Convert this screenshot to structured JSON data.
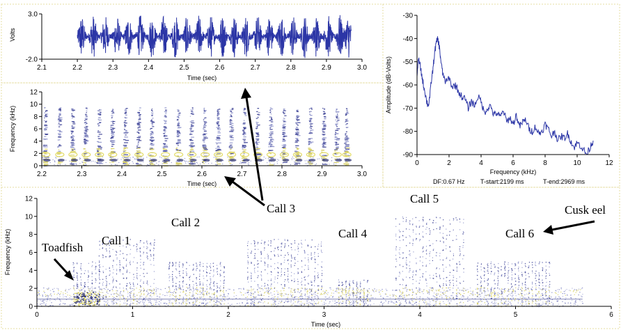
{
  "waveform": {
    "ylabel": "Volts",
    "xlabel": "Time (sec)",
    "y_ticks": [
      "3.0",
      "-2.0"
    ],
    "x_ticks": [
      "2.1",
      "2.2",
      "2.3",
      "2.4",
      "2.5",
      "2.6",
      "2.7",
      "2.8",
      "2.9",
      "3.0"
    ],
    "color": "#2b35a6"
  },
  "spectrogram_small": {
    "ylabel": "Frequency (kHz)",
    "xlabel": "Time (sec)",
    "y_ticks": [
      "0",
      "2",
      "4",
      "6",
      "8",
      "10",
      "12"
    ],
    "x_ticks": [
      "2.2",
      "2.3",
      "2.4",
      "2.5",
      "2.6",
      "2.7",
      "2.8",
      "2.9",
      "3.0"
    ]
  },
  "spectrum": {
    "ylabel": "Amplitude (dB-Volts)",
    "xlabel": "Frequency (kHz)",
    "y_ticks": [
      "-30",
      "-40",
      "-50",
      "-60",
      "-70",
      "-80",
      "-90"
    ],
    "x_ticks": [
      "0",
      "2",
      "4",
      "6",
      "8",
      "10",
      "12"
    ],
    "info": {
      "df": "DF:0.67 Hz",
      "t_start": "T-start:2199 ms",
      "t_end": "T-end:2969 ms"
    },
    "color": "#2b35a6"
  },
  "spectrogram_large": {
    "ylabel": "Frequency (kHz)",
    "xlabel": "Time (sec)",
    "y_ticks": [
      "0",
      "2",
      "4",
      "6",
      "8",
      "10",
      "12"
    ],
    "x_ticks": [
      "0",
      "1",
      "2",
      "3",
      "4",
      "5",
      "6"
    ]
  },
  "annotations": {
    "toadfish": "Toadfish",
    "call1": "Call 1",
    "call2": "Call 2",
    "call3": "Call 3",
    "call4": "Call 4",
    "call5": "Call 5",
    "call6": "Call 6",
    "cusk_eel": "Cusk eel"
  },
  "chart_data": [
    {
      "type": "line",
      "ylabel": "Volts",
      "xlabel": "Time (sec)",
      "xlim": [
        2.1,
        3.0
      ],
      "ylim": [
        -2.0,
        3.0
      ],
      "pulse_times": [
        2.212,
        2.245,
        2.278,
        2.311,
        2.344,
        2.377,
        2.41,
        2.443,
        2.476,
        2.509,
        2.542,
        2.575,
        2.608,
        2.641,
        2.674,
        2.707,
        2.74,
        2.773,
        2.806,
        2.839,
        2.872,
        2.905,
        2.938,
        2.962
      ],
      "signal_range": [
        2.2,
        2.97
      ]
    },
    {
      "type": "heatmap",
      "ylabel": "Frequency (kHz)",
      "xlabel": "Time (sec)",
      "xlim": [
        2.2,
        3.0
      ],
      "ylim": [
        0,
        12
      ],
      "pulse_times": [
        2.21,
        2.245,
        2.278,
        2.311,
        2.344,
        2.377,
        2.41,
        2.443,
        2.476,
        2.509,
        2.542,
        2.575,
        2.608,
        2.641,
        2.674,
        2.707,
        2.74,
        2.773,
        2.806,
        2.839,
        2.872,
        2.905,
        2.938,
        2.962
      ],
      "max_freq": 9.5
    },
    {
      "type": "line",
      "ylabel": "Amplitude (dB-Volts)",
      "xlabel": "Frequency (kHz)",
      "xlim": [
        0,
        12
      ],
      "ylim": [
        -90,
        -30
      ],
      "x": [
        0,
        0.1,
        0.2,
        0.3,
        0.4,
        0.5,
        0.6,
        0.7,
        0.8,
        0.9,
        1.0,
        1.1,
        1.2,
        1.3,
        1.4,
        1.5,
        1.6,
        1.8,
        2.0,
        2.2,
        2.4,
        2.6,
        2.8,
        3.0,
        3.2,
        3.4,
        3.6,
        3.8,
        4.0,
        4.2,
        4.4,
        4.6,
        4.8,
        5.0,
        5.2,
        5.4,
        5.6,
        5.8,
        6.0,
        6.2,
        6.4,
        6.6,
        6.8,
        7.0,
        7.2,
        7.4,
        7.6,
        7.8,
        8.0,
        8.2,
        8.4,
        8.6,
        8.8,
        9.0,
        9.2,
        9.4,
        9.6,
        9.8,
        10.0,
        10.2,
        10.4,
        10.6,
        10.8,
        11.0
      ],
      "values": [
        -55,
        -49,
        -52,
        -56,
        -60,
        -63,
        -67,
        -69,
        -65,
        -58,
        -53,
        -46,
        -42,
        -40,
        -44,
        -50,
        -55,
        -59,
        -57,
        -61,
        -60,
        -63,
        -65,
        -66,
        -70,
        -67,
        -69,
        -65,
        -67,
        -72,
        -70,
        -69,
        -73,
        -72,
        -74,
        -71,
        -76,
        -74,
        -77,
        -73,
        -78,
        -76,
        -75,
        -79,
        -80,
        -78,
        -81,
        -80,
        -77,
        -79,
        -82,
        -80,
        -84,
        -82,
        -83,
        -81,
        -84,
        -87,
        -85,
        -86,
        -88,
        -90,
        -87,
        -84
      ]
    },
    {
      "type": "heatmap",
      "ylabel": "Frequency (kHz)",
      "xlabel": "Time (sec)",
      "xlim": [
        0,
        6
      ],
      "ylim": [
        0,
        12
      ],
      "events": [
        {
          "label": "Toadfish",
          "start": 0.38,
          "end": 0.65,
          "max_freq": 5.0
        },
        {
          "label": "Call 1",
          "start": 0.65,
          "end": 1.22,
          "max_freq": 7.5
        },
        {
          "label": "Call 2",
          "start": 1.38,
          "end": 1.95,
          "max_freq": 5.0
        },
        {
          "label": "Call 3",
          "start": 2.2,
          "end": 2.97,
          "max_freq": 7.5
        },
        {
          "label": "Call 4",
          "start": 3.15,
          "end": 3.45,
          "max_freq": 3.0
        },
        {
          "label": "Call 5",
          "start": 3.75,
          "end": 4.45,
          "max_freq": 10.0
        },
        {
          "label": "Call 6",
          "start": 4.6,
          "end": 5.35,
          "max_freq": 5.0
        }
      ]
    }
  ]
}
